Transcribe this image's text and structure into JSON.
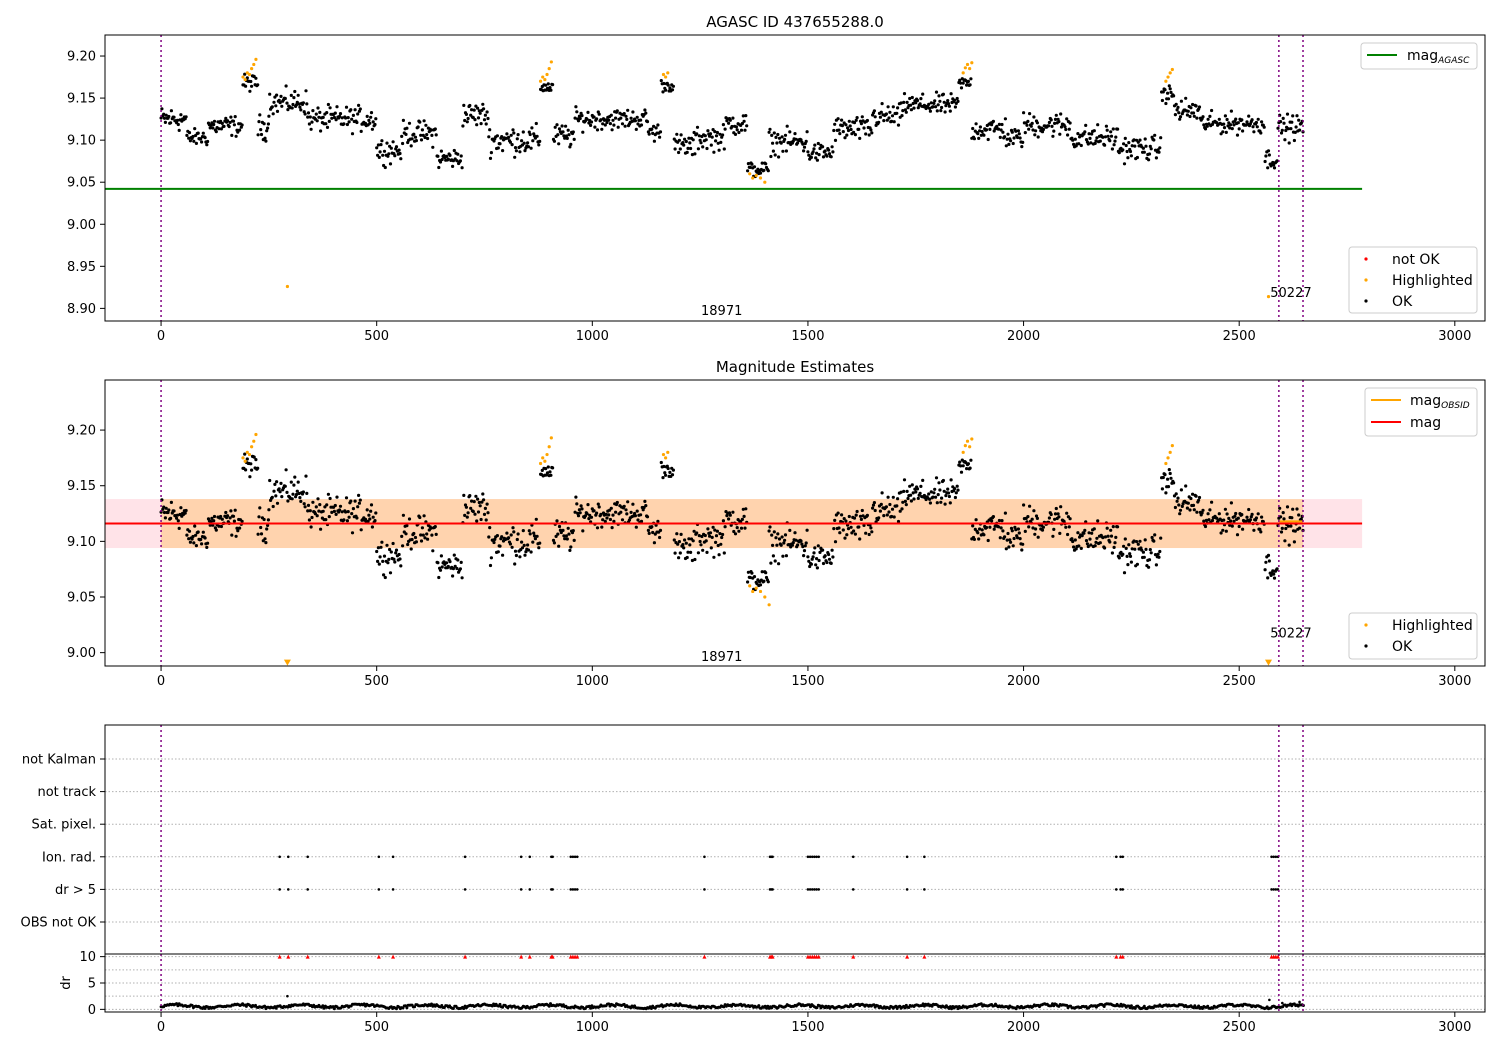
{
  "chart_data": [
    {
      "type": "scatter",
      "title": "AGASC ID 437655288.0",
      "xlabel": "",
      "ylabel": "",
      "xlim": [
        -130,
        3070
      ],
      "ylim": [
        8.885,
        9.225
      ],
      "x_ticks": [
        "0",
        "500",
        "1000",
        "1500",
        "2000",
        "2500",
        "3000"
      ],
      "y_ticks": [
        "8.90",
        "8.95",
        "9.00",
        "9.05",
        "9.10",
        "9.15",
        "9.20"
      ],
      "grid": false,
      "reference_line": {
        "name": "mag_AGASC",
        "y": 9.042,
        "x_range": [
          -130,
          2785
        ],
        "color": "#008000"
      },
      "series": [
        {
          "name": "not OK",
          "color": "#ff0000",
          "points": []
        },
        {
          "name": "Highlighted",
          "color": "#ffa500",
          "points": [
            [
              190,
              9.175
            ],
            [
              195,
              9.172
            ],
            [
              200,
              9.18
            ],
            [
              205,
              9.178
            ],
            [
              210,
              9.185
            ],
            [
              215,
              9.19
            ],
            [
              220,
              9.196
            ],
            [
              880,
              9.17
            ],
            [
              885,
              9.175
            ],
            [
              890,
              9.172
            ],
            [
              895,
              9.178
            ],
            [
              900,
              9.185
            ],
            [
              905,
              9.193
            ],
            [
              1165,
              9.178
            ],
            [
              1170,
              9.175
            ],
            [
              1175,
              9.18
            ],
            [
              1365,
              9.06
            ],
            [
              1372,
              9.055
            ],
            [
              1380,
              9.058
            ],
            [
              1390,
              9.055
            ],
            [
              1400,
              9.05
            ],
            [
              1860,
              9.18
            ],
            [
              1865,
              9.186
            ],
            [
              1870,
              9.19
            ],
            [
              1875,
              9.185
            ],
            [
              1880,
              9.192
            ],
            [
              2330,
              9.17
            ],
            [
              2335,
              9.175
            ],
            [
              2340,
              9.18
            ],
            [
              2345,
              9.184
            ],
            [
              293,
              8.926
            ],
            [
              2568,
              8.914
            ]
          ]
        },
        {
          "name": "OK",
          "color": "#000000",
          "points": []
        }
      ],
      "segments": [
        {
          "x0": 0,
          "x1": 60,
          "y": 9.125,
          "amp": 0.012
        },
        {
          "x0": 60,
          "x1": 110,
          "y": 9.103,
          "amp": 0.008
        },
        {
          "x0": 110,
          "x1": 190,
          "y": 9.117,
          "amp": 0.01
        },
        {
          "x0": 190,
          "x1": 225,
          "y": 9.168,
          "amp": 0.008
        },
        {
          "x0": 225,
          "x1": 250,
          "y": 9.115,
          "amp": 0.012
        },
        {
          "x0": 250,
          "x1": 340,
          "y": 9.145,
          "amp": 0.012
        },
        {
          "x0": 340,
          "x1": 500,
          "y": 9.125,
          "amp": 0.012
        },
        {
          "x0": 500,
          "x1": 560,
          "y": 9.088,
          "amp": 0.012
        },
        {
          "x0": 560,
          "x1": 640,
          "y": 9.108,
          "amp": 0.012
        },
        {
          "x0": 640,
          "x1": 700,
          "y": 9.078,
          "amp": 0.01
        },
        {
          "x0": 700,
          "x1": 760,
          "y": 9.13,
          "amp": 0.012
        },
        {
          "x0": 760,
          "x1": 880,
          "y": 9.1,
          "amp": 0.014
        },
        {
          "x0": 880,
          "x1": 910,
          "y": 9.163,
          "amp": 0.006
        },
        {
          "x0": 910,
          "x1": 960,
          "y": 9.105,
          "amp": 0.012
        },
        {
          "x0": 960,
          "x1": 1130,
          "y": 9.125,
          "amp": 0.01
        },
        {
          "x0": 1130,
          "x1": 1160,
          "y": 9.11,
          "amp": 0.01
        },
        {
          "x0": 1160,
          "x1": 1190,
          "y": 9.165,
          "amp": 0.006
        },
        {
          "x0": 1190,
          "x1": 1240,
          "y": 9.093,
          "amp": 0.012
        },
        {
          "x0": 1240,
          "x1": 1310,
          "y": 9.103,
          "amp": 0.012
        },
        {
          "x0": 1310,
          "x1": 1360,
          "y": 9.12,
          "amp": 0.012
        },
        {
          "x0": 1360,
          "x1": 1410,
          "y": 9.065,
          "amp": 0.008
        },
        {
          "x0": 1410,
          "x1": 1500,
          "y": 9.098,
          "amp": 0.012
        },
        {
          "x0": 1500,
          "x1": 1560,
          "y": 9.085,
          "amp": 0.01
        },
        {
          "x0": 1560,
          "x1": 1650,
          "y": 9.113,
          "amp": 0.012
        },
        {
          "x0": 1650,
          "x1": 1720,
          "y": 9.128,
          "amp": 0.012
        },
        {
          "x0": 1720,
          "x1": 1850,
          "y": 9.142,
          "amp": 0.01
        },
        {
          "x0": 1850,
          "x1": 1880,
          "y": 9.168,
          "amp": 0.006
        },
        {
          "x0": 1880,
          "x1": 1960,
          "y": 9.113,
          "amp": 0.012
        },
        {
          "x0": 1960,
          "x1": 2000,
          "y": 9.103,
          "amp": 0.01
        },
        {
          "x0": 2000,
          "x1": 2110,
          "y": 9.118,
          "amp": 0.012
        },
        {
          "x0": 2110,
          "x1": 2220,
          "y": 9.103,
          "amp": 0.012
        },
        {
          "x0": 2220,
          "x1": 2320,
          "y": 9.09,
          "amp": 0.012
        },
        {
          "x0": 2320,
          "x1": 2350,
          "y": 9.155,
          "amp": 0.008
        },
        {
          "x0": 2350,
          "x1": 2410,
          "y": 9.135,
          "amp": 0.012
        },
        {
          "x0": 2410,
          "x1": 2560,
          "y": 9.12,
          "amp": 0.01
        },
        {
          "x0": 2560,
          "x1": 2590,
          "y": 9.078,
          "amp": 0.01
        },
        {
          "x0": 2590,
          "x1": 2650,
          "y": 9.115,
          "amp": 0.012
        }
      ],
      "vlines": [
        0,
        2592,
        2648
      ],
      "annotations": [
        {
          "text": "18971",
          "x": 1300,
          "y": 8.897
        },
        {
          "text": "50227",
          "x": 2620,
          "y": 8.918
        }
      ],
      "legends": [
        {
          "placement": "top-right",
          "entries": [
            {
              "label": "mag",
              "sub": "AGASC",
              "kind": "line",
              "color": "#008000"
            }
          ]
        },
        {
          "placement": "bottom-right",
          "entries": [
            {
              "label": "not OK",
              "kind": "dot",
              "color": "#ff0000"
            },
            {
              "label": "Highlighted",
              "kind": "dot",
              "color": "#ffa500"
            },
            {
              "label": "OK",
              "kind": "dot",
              "color": "#000000"
            }
          ]
        }
      ]
    },
    {
      "type": "scatter",
      "title": "Magnitude Estimates",
      "xlabel": "",
      "ylabel": "",
      "xlim": [
        -130,
        3070
      ],
      "ylim": [
        8.988,
        9.245
      ],
      "x_ticks": [
        "0",
        "500",
        "1000",
        "1500",
        "2000",
        "2500",
        "3000"
      ],
      "y_ticks": [
        "9.00",
        "9.05",
        "9.10",
        "9.15",
        "9.20"
      ],
      "grid": false,
      "mag": {
        "name": "mag",
        "y": 9.116,
        "band": [
          9.094,
          9.138
        ],
        "x_range": [
          -130,
          2785
        ],
        "color": "#ff0000"
      },
      "mag_obsid": {
        "name": "mag_OBSID",
        "color": "#ffa500",
        "obsids": [
          {
            "x0": 0,
            "x1": 2592,
            "y": 9.116,
            "band": [
              9.094,
              9.138
            ]
          },
          {
            "x0": 2592,
            "x1": 2648,
            "y": 9.118,
            "band": [
              9.094,
              9.138
            ]
          }
        ]
      },
      "series": [
        {
          "name": "Highlighted",
          "color": "#ffa500",
          "points": [
            [
              190,
              9.175
            ],
            [
              195,
              9.172
            ],
            [
              200,
              9.18
            ],
            [
              205,
              9.178
            ],
            [
              210,
              9.185
            ],
            [
              215,
              9.19
            ],
            [
              220,
              9.196
            ],
            [
              880,
              9.17
            ],
            [
              885,
              9.175
            ],
            [
              890,
              9.172
            ],
            [
              895,
              9.178
            ],
            [
              900,
              9.185
            ],
            [
              905,
              9.193
            ],
            [
              1165,
              9.178
            ],
            [
              1170,
              9.175
            ],
            [
              1175,
              9.18
            ],
            [
              1365,
              9.06
            ],
            [
              1372,
              9.055
            ],
            [
              1380,
              9.058
            ],
            [
              1390,
              9.055
            ],
            [
              1400,
              9.05
            ],
            [
              1410,
              9.043
            ],
            [
              1860,
              9.18
            ],
            [
              1865,
              9.186
            ],
            [
              1870,
              9.19
            ],
            [
              1875,
              9.185
            ],
            [
              1880,
              9.192
            ],
            [
              2330,
              9.17
            ],
            [
              2335,
              9.175
            ],
            [
              2340,
              9.18
            ],
            [
              2345,
              9.186
            ]
          ]
        },
        {
          "name": "OK",
          "color": "#000000",
          "points": []
        }
      ],
      "offscale_markers": [
        {
          "x": 293,
          "y": 8.991
        },
        {
          "x": 2568,
          "y": 8.991
        }
      ],
      "same_segments_as_panel": 0,
      "vlines": [
        0,
        2592,
        2648
      ],
      "annotations": [
        {
          "text": "18971",
          "x": 1300,
          "y": 8.996
        },
        {
          "text": "50227",
          "x": 2620,
          "y": 9.017
        }
      ],
      "legends": [
        {
          "placement": "top-right",
          "entries": [
            {
              "label": "mag",
              "sub": "OBSID",
              "kind": "line",
              "color": "#ffa500"
            },
            {
              "label": "mag",
              "kind": "line",
              "color": "#ff0000"
            }
          ]
        },
        {
          "placement": "bottom-right",
          "entries": [
            {
              "label": "Highlighted",
              "kind": "dot",
              "color": "#ffa500"
            },
            {
              "label": "OK",
              "kind": "dot",
              "color": "#000000"
            }
          ]
        }
      ]
    },
    {
      "type": "scatter",
      "title": "",
      "xlim": [
        -130,
        3070
      ],
      "categories": [
        "not Kalman",
        "not track",
        "Sat. pixel.",
        "Ion. rad.",
        "dr > 5",
        "OBS not OK"
      ],
      "flag_times": {
        "Ion. rad.": [
          275,
          295,
          340,
          505,
          538,
          705,
          835,
          855,
          905,
          908,
          950,
          955,
          960,
          965,
          1260,
          1412,
          1415,
          1418,
          1500,
          1505,
          1510,
          1515,
          1520,
          1525,
          1605,
          1730,
          1770,
          2215,
          2225,
          2230,
          2575,
          2580,
          2585,
          2590
        ],
        "dr > 5": [
          275,
          295,
          340,
          505,
          538,
          705,
          835,
          855,
          905,
          908,
          950,
          955,
          960,
          965,
          1260,
          1412,
          1415,
          1418,
          1500,
          1505,
          1510,
          1515,
          1520,
          1525,
          1605,
          1730,
          1770,
          2215,
          2225,
          2230,
          2575,
          2580,
          2585,
          2590
        ]
      },
      "vlines": [
        0,
        2592,
        2648
      ]
    },
    {
      "type": "scatter",
      "title": "",
      "ylabel": "dr",
      "xlim": [
        -130,
        3070
      ],
      "ylim": [
        -0.5,
        10.5
      ],
      "x_ticks": [
        "0",
        "500",
        "1000",
        "1500",
        "2000",
        "2500",
        "3000"
      ],
      "y_ticks": [
        "0",
        "5",
        "10"
      ],
      "capped_value": 10,
      "capped_color": "#ff0000",
      "capped_times": [
        275,
        295,
        340,
        505,
        538,
        705,
        835,
        855,
        905,
        908,
        950,
        955,
        960,
        965,
        1260,
        1412,
        1415,
        1418,
        1500,
        1505,
        1510,
        1515,
        1520,
        1525,
        1605,
        1730,
        1770,
        2215,
        2225,
        2230,
        2575,
        2580,
        2585,
        2590
      ],
      "baseline_dr": 0.6,
      "extra_points": [
        [
          293,
          2.5
        ],
        [
          2570,
          1.8
        ],
        [
          2600,
          1.2
        ],
        [
          2640,
          1.4
        ]
      ],
      "vlines": [
        0,
        2592,
        2648
      ]
    }
  ]
}
